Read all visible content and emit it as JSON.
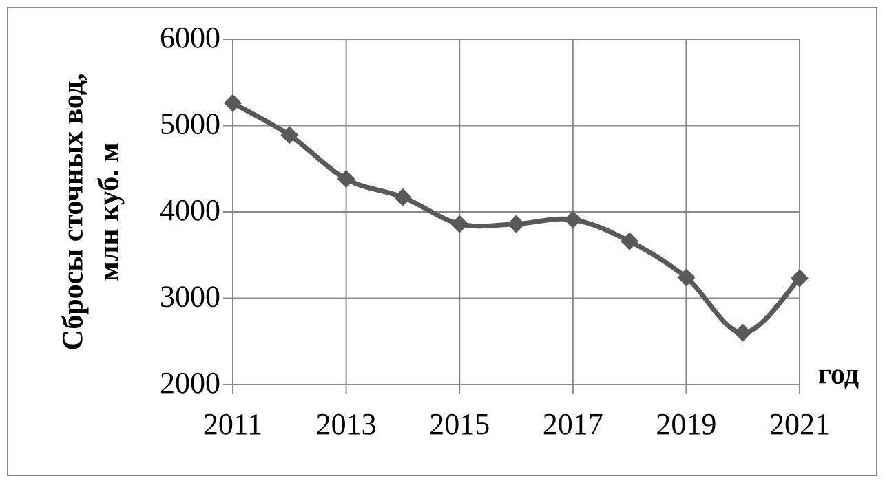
{
  "chart_data": {
    "type": "line",
    "ylabel": [
      "Сбросы сточных вод,",
      "млн куб. м"
    ],
    "xlabel": "год",
    "x": [
      2011,
      2012,
      2013,
      2014,
      2015,
      2016,
      2017,
      2018,
      2019,
      2020,
      2021
    ],
    "series": [
      {
        "color": "#595959",
        "values": [
          5260,
          4890,
          4380,
          4170,
          3860,
          3860,
          3910,
          3660,
          3240,
          2600,
          3230
        ]
      }
    ],
    "xlim": [
      2011,
      2021
    ],
    "xticks": [
      2011,
      2013,
      2015,
      2017,
      2019,
      2021
    ],
    "ylim": [
      2000,
      6000
    ],
    "yticks": [
      2000,
      3000,
      4000,
      5000,
      6000
    ],
    "grid": true,
    "smooth": true,
    "marker": "diamond"
  }
}
